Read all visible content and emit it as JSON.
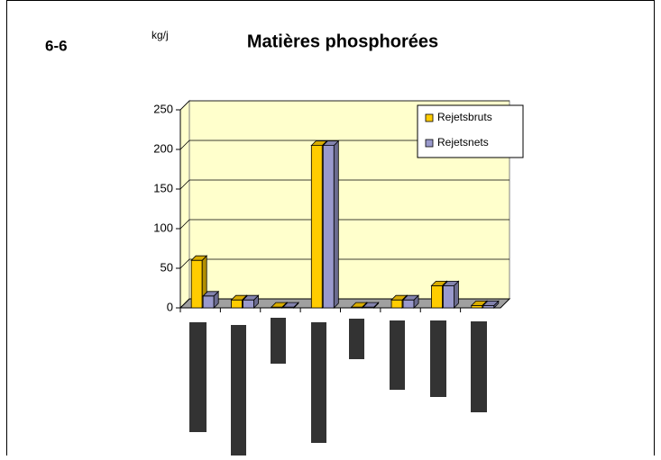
{
  "chart_data": {
    "type": "bar3d",
    "title": "Matières phosphorées",
    "figure_label": "6-6",
    "y_label": "kg/j",
    "categories": [
      null,
      null,
      null,
      null,
      null,
      null,
      null,
      null
    ],
    "series": [
      {
        "name": "Rejetsbruts",
        "color": "#ffcc00",
        "values": [
          60,
          10,
          1,
          205,
          1,
          10,
          28,
          3
        ]
      },
      {
        "name": "Rejetsnets",
        "color": "#9999cc",
        "values": [
          15,
          10,
          1,
          205,
          1,
          10,
          28,
          3
        ]
      }
    ],
    "ylim": [
      0,
      250
    ],
    "yticks": [
      0,
      50,
      100,
      150,
      200,
      250
    ],
    "grid": true,
    "legend": "top-right"
  }
}
